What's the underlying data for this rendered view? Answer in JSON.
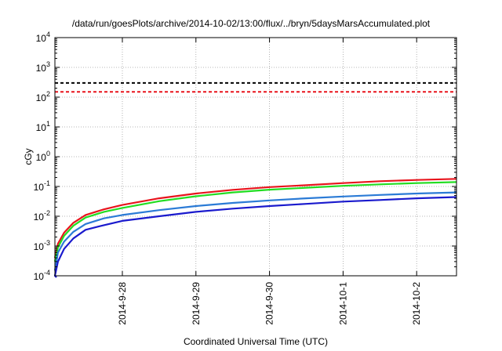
{
  "chart_data": {
    "type": "line",
    "title": "/data/run/goesPlots/archive/2014-10-02/13:00/flux/../bryn/5daysMarsAccumulated.plot",
    "xlabel": "Coordinated Universal Time (UTC)",
    "ylabel": "cGy",
    "yscale": "log",
    "ylim": [
      0.0001,
      10000
    ],
    "xlim": [
      "2014-09-27 02:00",
      "2014-10-02 13:00"
    ],
    "x_ticks": [
      "2014-9-28",
      "2014-9-29",
      "2014-9-30",
      "2014-10-1",
      "2014-10-2"
    ],
    "y_ticks": [
      {
        "base": "10",
        "exp": "-4"
      },
      {
        "base": "10",
        "exp": "-3"
      },
      {
        "base": "10",
        "exp": "-2"
      },
      {
        "base": "10",
        "exp": "-1"
      },
      {
        "base": "10",
        "exp": "0"
      },
      {
        "base": "10",
        "exp": "1"
      },
      {
        "base": "10",
        "exp": "2"
      },
      {
        "base": "10",
        "exp": "3"
      },
      {
        "base": "10",
        "exp": "4"
      }
    ],
    "grid": true,
    "legend": "none",
    "reference_lines": [
      {
        "style": "dashed",
        "color": "#000000",
        "y": 300
      },
      {
        "style": "dashed",
        "color": "#e8141c",
        "y": 150
      }
    ],
    "series": [
      {
        "color": "#e8141c",
        "x": [
          "2014-09-27 02:00",
          "2014-09-27 03:00",
          "2014-09-27 05:00",
          "2014-09-27 08:00",
          "2014-09-27 12:00",
          "2014-09-27 18:00",
          "2014-09-28 00:00",
          "2014-09-28 12:00",
          "2014-09-29 00:00",
          "2014-09-29 12:00",
          "2014-09-30 00:00",
          "2014-09-30 12:00",
          "2014-10-01 00:00",
          "2014-10-01 12:00",
          "2014-10-02 00:00",
          "2014-10-02 13:00"
        ],
        "values": [
          0.0004,
          0.0012,
          0.0028,
          0.006,
          0.011,
          0.017,
          0.024,
          0.04,
          0.058,
          0.077,
          0.095,
          0.11,
          0.13,
          0.15,
          0.165,
          0.18
        ]
      },
      {
        "color": "#22dd22",
        "x": [
          "2014-09-27 02:00",
          "2014-09-27 03:00",
          "2014-09-27 05:00",
          "2014-09-27 08:00",
          "2014-09-27 12:00",
          "2014-09-27 18:00",
          "2014-09-28 00:00",
          "2014-09-28 12:00",
          "2014-09-29 00:00",
          "2014-09-29 12:00",
          "2014-09-30 00:00",
          "2014-09-30 12:00",
          "2014-10-01 00:00",
          "2014-10-01 12:00",
          "2014-10-02 00:00",
          "2014-10-02 13:00"
        ],
        "values": [
          0.0003,
          0.0009,
          0.0022,
          0.0048,
          0.009,
          0.014,
          0.019,
          0.032,
          0.047,
          0.063,
          0.078,
          0.091,
          0.105,
          0.118,
          0.13,
          0.14
        ]
      },
      {
        "color": "#2b7bd6",
        "x": [
          "2014-09-27 02:00",
          "2014-09-27 03:00",
          "2014-09-27 05:00",
          "2014-09-27 08:00",
          "2014-09-27 12:00",
          "2014-09-27 18:00",
          "2014-09-28 00:00",
          "2014-09-28 12:00",
          "2014-09-29 00:00",
          "2014-09-29 12:00",
          "2014-09-30 00:00",
          "2014-09-30 12:00",
          "2014-10-01 00:00",
          "2014-10-01 12:00",
          "2014-10-02 00:00",
          "2014-10-02 13:00"
        ],
        "values": [
          0.00015,
          0.0006,
          0.0014,
          0.003,
          0.0055,
          0.0085,
          0.011,
          0.016,
          0.022,
          0.028,
          0.034,
          0.04,
          0.046,
          0.052,
          0.058,
          0.063
        ]
      },
      {
        "color": "#1a1acd",
        "x": [
          "2014-09-27 02:00",
          "2014-09-27 03:00",
          "2014-09-27 05:00",
          "2014-09-27 08:00",
          "2014-09-27 12:00",
          "2014-09-27 18:00",
          "2014-09-28 00:00",
          "2014-09-28 12:00",
          "2014-09-29 00:00",
          "2014-09-29 12:00",
          "2014-09-30 00:00",
          "2014-09-30 12:00",
          "2014-10-01 00:00",
          "2014-10-01 12:00",
          "2014-10-02 00:00",
          "2014-10-02 13:00"
        ],
        "values": [
          0.0001,
          0.0003,
          0.0008,
          0.0018,
          0.0035,
          0.005,
          0.007,
          0.01,
          0.014,
          0.018,
          0.022,
          0.026,
          0.031,
          0.035,
          0.04,
          0.044
        ]
      }
    ]
  }
}
